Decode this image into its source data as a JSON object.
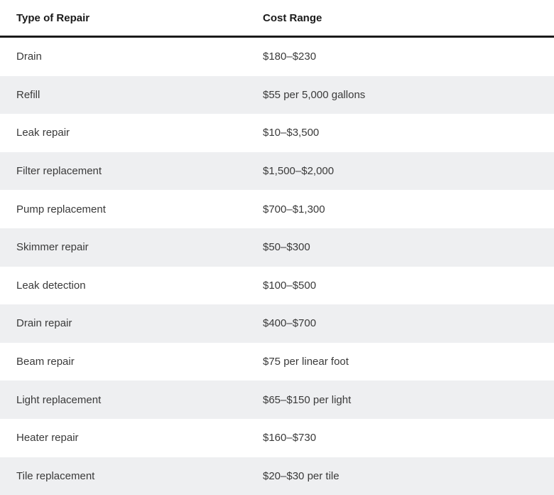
{
  "table": {
    "headers": {
      "type": "Type of Repair",
      "cost": "Cost Range"
    },
    "rows": [
      {
        "type": "Drain",
        "cost": "$180–$230"
      },
      {
        "type": "Refill",
        "cost": "$55 per 5,000 gallons"
      },
      {
        "type": "Leak repair",
        "cost": "$10–$3,500"
      },
      {
        "type": "Filter replacement",
        "cost": "$1,500–$2,000"
      },
      {
        "type": "Pump replacement",
        "cost": "$700–$1,300"
      },
      {
        "type": "Skimmer repair",
        "cost": "$50–$300"
      },
      {
        "type": "Leak detection",
        "cost": "$100–$500"
      },
      {
        "type": "Drain repair",
        "cost": "$400–$700"
      },
      {
        "type": "Beam repair",
        "cost": "$75 per linear foot"
      },
      {
        "type": "Light replacement",
        "cost": "$65–$150 per light"
      },
      {
        "type": "Heater repair",
        "cost": "$160–$730"
      },
      {
        "type": "Tile replacement",
        "cost": "$20–$30 per tile"
      }
    ]
  }
}
